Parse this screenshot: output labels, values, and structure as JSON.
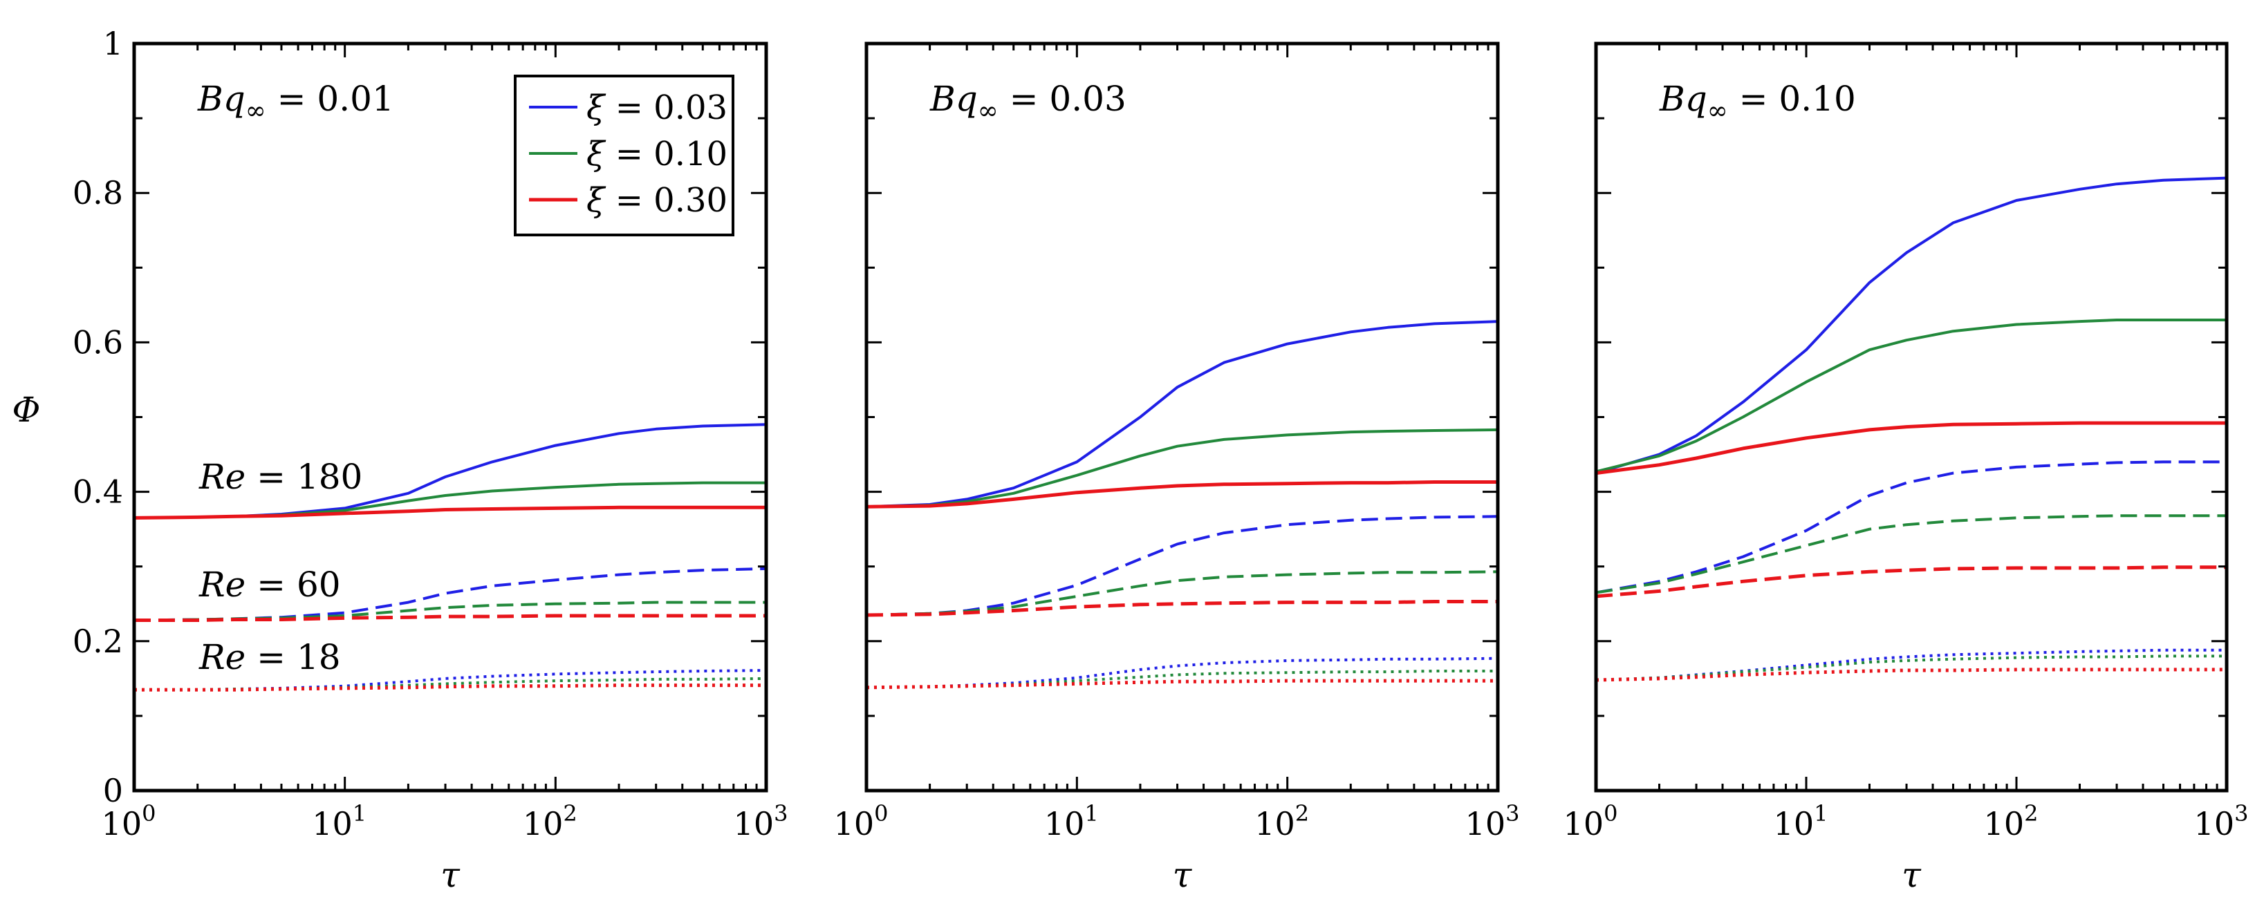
{
  "chart_data": {
    "type": "line",
    "ylabel": "Φ",
    "xlabel": "τ",
    "xscale": "log",
    "xlim": [
      1,
      1000
    ],
    "ylim": [
      0,
      1
    ],
    "xticks": [
      {
        "base": "10",
        "exp": "0"
      },
      {
        "base": "10",
        "exp": "1"
      },
      {
        "base": "10",
        "exp": "2"
      },
      {
        "base": "10",
        "exp": "3"
      }
    ],
    "yticks": [
      "0",
      "0.2",
      "0.4",
      "0.6",
      "0.8",
      "1"
    ],
    "legend": {
      "position": "top-right of first panel",
      "entries": [
        {
          "symbol": "ξ",
          "value": "0.03",
          "color": "#1f1fe6"
        },
        {
          "symbol": "ξ",
          "value": "0.10",
          "color": "#22893b"
        },
        {
          "symbol": "ξ",
          "value": "0.30",
          "color": "#e8141a"
        }
      ]
    },
    "line_styles": {
      "Re=180": "solid",
      "Re=60": "dashed",
      "Re=18": "dotted"
    },
    "re_labels": [
      {
        "prefix": "Re",
        "value": "180"
      },
      {
        "prefix": "Re",
        "value": "60"
      },
      {
        "prefix": "Re",
        "value": "18"
      }
    ],
    "tau": [
      1,
      2,
      3,
      5,
      10,
      20,
      30,
      50,
      100,
      200,
      300,
      500,
      1000
    ],
    "panels": [
      {
        "title_prefix": "Bq",
        "title_sub": "∞",
        "title_value": "0.01",
        "series": [
          {
            "Re": 180,
            "xi": "0.03",
            "values": [
              0.365,
              0.366,
              0.367,
              0.37,
              0.378,
              0.398,
              0.42,
              0.44,
              0.462,
              0.478,
              0.484,
              0.488,
              0.49
            ]
          },
          {
            "Re": 180,
            "xi": "0.10",
            "values": [
              0.365,
              0.366,
              0.367,
              0.369,
              0.375,
              0.388,
              0.395,
              0.401,
              0.406,
              0.41,
              0.411,
              0.412,
              0.412
            ]
          },
          {
            "Re": 180,
            "xi": "0.30",
            "values": [
              0.365,
              0.366,
              0.367,
              0.368,
              0.371,
              0.374,
              0.376,
              0.377,
              0.378,
              0.379,
              0.379,
              0.379,
              0.379
            ]
          },
          {
            "Re": 60,
            "xi": "0.03",
            "values": [
              0.228,
              0.229,
              0.23,
              0.232,
              0.238,
              0.252,
              0.264,
              0.274,
              0.282,
              0.289,
              0.292,
              0.295,
              0.297
            ]
          },
          {
            "Re": 60,
            "xi": "0.10",
            "values": [
              0.228,
              0.229,
              0.23,
              0.231,
              0.234,
              0.241,
              0.245,
              0.248,
              0.25,
              0.251,
              0.252,
              0.252,
              0.252
            ]
          },
          {
            "Re": 60,
            "xi": "0.30",
            "values": [
              0.228,
              0.228,
              0.229,
              0.229,
              0.231,
              0.232,
              0.233,
              0.233,
              0.234,
              0.234,
              0.234,
              0.234,
              0.234
            ]
          },
          {
            "Re": 18,
            "xi": "0.03",
            "values": [
              0.135,
              0.135,
              0.136,
              0.137,
              0.14,
              0.146,
              0.15,
              0.153,
              0.156,
              0.158,
              0.159,
              0.16,
              0.161
            ]
          },
          {
            "Re": 18,
            "xi": "0.10",
            "values": [
              0.135,
              0.135,
              0.136,
              0.136,
              0.138,
              0.141,
              0.143,
              0.145,
              0.147,
              0.148,
              0.149,
              0.149,
              0.15
            ]
          },
          {
            "Re": 18,
            "xi": "0.30",
            "values": [
              0.135,
              0.135,
              0.135,
              0.136,
              0.137,
              0.138,
              0.139,
              0.14,
              0.14,
              0.141,
              0.141,
              0.141,
              0.141
            ]
          }
        ]
      },
      {
        "title_prefix": "Bq",
        "title_sub": "∞",
        "title_value": "0.03",
        "series": [
          {
            "Re": 180,
            "xi": "0.03",
            "values": [
              0.38,
              0.383,
              0.39,
              0.405,
              0.44,
              0.5,
              0.54,
              0.573,
              0.598,
              0.614,
              0.62,
              0.625,
              0.628
            ]
          },
          {
            "Re": 180,
            "xi": "0.10",
            "values": [
              0.38,
              0.382,
              0.387,
              0.398,
              0.422,
              0.448,
              0.461,
              0.47,
              0.476,
              0.48,
              0.481,
              0.482,
              0.483
            ]
          },
          {
            "Re": 180,
            "xi": "0.30",
            "values": [
              0.38,
              0.381,
              0.384,
              0.39,
              0.399,
              0.405,
              0.408,
              0.41,
              0.411,
              0.412,
              0.412,
              0.413,
              0.413
            ]
          },
          {
            "Re": 60,
            "xi": "0.03",
            "values": [
              0.235,
              0.237,
              0.241,
              0.251,
              0.275,
              0.31,
              0.33,
              0.345,
              0.356,
              0.362,
              0.364,
              0.366,
              0.367
            ]
          },
          {
            "Re": 60,
            "xi": "0.10",
            "values": [
              0.235,
              0.237,
              0.24,
              0.246,
              0.26,
              0.274,
              0.281,
              0.286,
              0.289,
              0.291,
              0.292,
              0.292,
              0.293
            ]
          },
          {
            "Re": 60,
            "xi": "0.30",
            "values": [
              0.235,
              0.236,
              0.238,
              0.241,
              0.246,
              0.249,
              0.25,
              0.251,
              0.252,
              0.252,
              0.252,
              0.253,
              0.253
            ]
          },
          {
            "Re": 18,
            "xi": "0.03",
            "values": [
              0.138,
              0.139,
              0.141,
              0.144,
              0.151,
              0.162,
              0.167,
              0.171,
              0.174,
              0.175,
              0.176,
              0.176,
              0.177
            ]
          },
          {
            "Re": 18,
            "xi": "0.10",
            "values": [
              0.138,
              0.139,
              0.14,
              0.142,
              0.147,
              0.152,
              0.155,
              0.157,
              0.158,
              0.159,
              0.159,
              0.16,
              0.16
            ]
          },
          {
            "Re": 18,
            "xi": "0.30",
            "values": [
              0.138,
              0.139,
              0.14,
              0.141,
              0.143,
              0.145,
              0.146,
              0.146,
              0.147,
              0.147,
              0.147,
              0.147,
              0.147
            ]
          }
        ]
      },
      {
        "title_prefix": "Bq",
        "title_sub": "∞",
        "title_value": "0.10",
        "series": [
          {
            "Re": 180,
            "xi": "0.03",
            "values": [
              0.425,
              0.45,
              0.475,
              0.52,
              0.59,
              0.68,
              0.72,
              0.76,
              0.79,
              0.805,
              0.812,
              0.817,
              0.82
            ]
          },
          {
            "Re": 180,
            "xi": "0.10",
            "values": [
              0.427,
              0.448,
              0.468,
              0.5,
              0.547,
              0.59,
              0.603,
              0.615,
              0.624,
              0.628,
              0.63,
              0.63,
              0.63
            ]
          },
          {
            "Re": 180,
            "xi": "0.30",
            "values": [
              0.425,
              0.436,
              0.445,
              0.458,
              0.472,
              0.483,
              0.487,
              0.49,
              0.491,
              0.492,
              0.492,
              0.492,
              0.492
            ]
          },
          {
            "Re": 60,
            "xi": "0.03",
            "values": [
              0.265,
              0.28,
              0.293,
              0.313,
              0.348,
              0.395,
              0.412,
              0.425,
              0.433,
              0.437,
              0.439,
              0.44,
              0.44
            ]
          },
          {
            "Re": 60,
            "xi": "0.10",
            "values": [
              0.265,
              0.278,
              0.29,
              0.306,
              0.328,
              0.35,
              0.356,
              0.361,
              0.365,
              0.367,
              0.368,
              0.368,
              0.368
            ]
          },
          {
            "Re": 60,
            "xi": "0.30",
            "values": [
              0.26,
              0.267,
              0.273,
              0.28,
              0.288,
              0.293,
              0.295,
              0.297,
              0.298,
              0.298,
              0.298,
              0.299,
              0.299
            ]
          },
          {
            "Re": 18,
            "xi": "0.03",
            "values": [
              0.148,
              0.151,
              0.155,
              0.16,
              0.168,
              0.176,
              0.179,
              0.182,
              0.184,
              0.186,
              0.187,
              0.188,
              0.188
            ]
          },
          {
            "Re": 18,
            "xi": "0.10",
            "values": [
              0.148,
              0.151,
              0.154,
              0.159,
              0.165,
              0.172,
              0.174,
              0.176,
              0.178,
              0.179,
              0.179,
              0.18,
              0.18
            ]
          },
          {
            "Re": 18,
            "xi": "0.30",
            "values": [
              0.148,
              0.15,
              0.152,
              0.155,
              0.158,
              0.16,
              0.161,
              0.161,
              0.162,
              0.162,
              0.162,
              0.162,
              0.162
            ]
          }
        ]
      }
    ]
  }
}
